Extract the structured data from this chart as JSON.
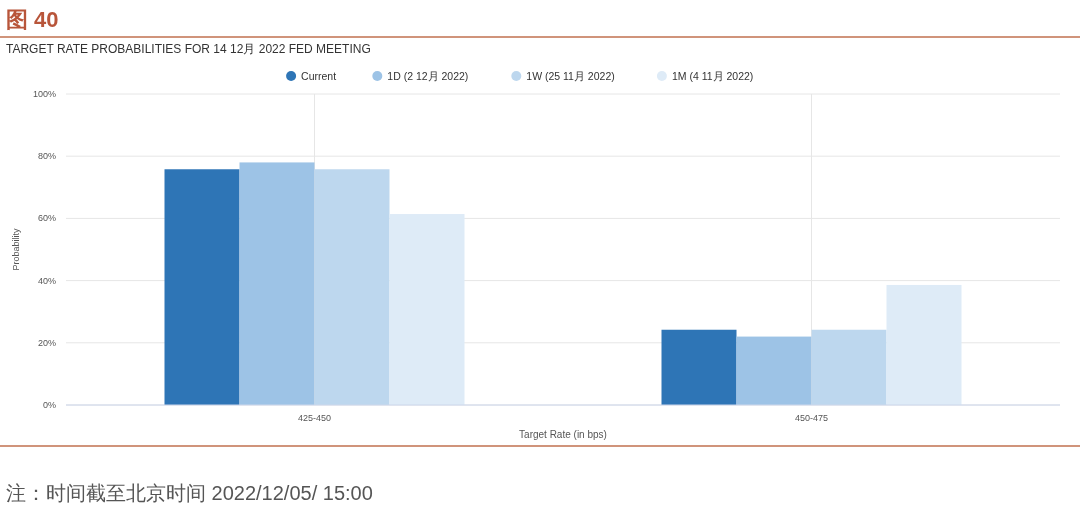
{
  "chart_data": {
    "type": "bar",
    "title": "图 40",
    "subtitle": "TARGET RATE PROBABILITIES FOR 14 12月 2022 FED MEETING",
    "xlabel": "Target Rate (in bps)",
    "ylabel": "Probability",
    "categories": [
      "425-450",
      "450-475"
    ],
    "series": [
      {
        "name": "Current",
        "color": "#2e75b6",
        "values": [
          75.8,
          24.2
        ]
      },
      {
        "name": "1D (2 12月 2022)",
        "color": "#9dc3e6",
        "values": [
          78.0,
          22.0
        ]
      },
      {
        "name": "1W (25 11月 2022)",
        "color": "#bdd7ee",
        "values": [
          75.8,
          24.2
        ]
      },
      {
        "name": "1M (4 11月 2022)",
        "color": "#deebf7",
        "values": [
          61.4,
          38.6
        ]
      }
    ],
    "ylim": [
      0,
      100
    ],
    "yticks": [
      {
        "value": 0,
        "label": "0%"
      },
      {
        "value": 20,
        "label": "20%"
      },
      {
        "value": 40,
        "label": "40%"
      },
      {
        "value": 60,
        "label": "60%"
      },
      {
        "value": 80,
        "label": "80%"
      },
      {
        "value": 100,
        "label": "100%"
      }
    ],
    "grid": true,
    "legend": "top",
    "annotations": [
      "注：时间截至北京时间 2022/12/05/ 15:00"
    ]
  }
}
